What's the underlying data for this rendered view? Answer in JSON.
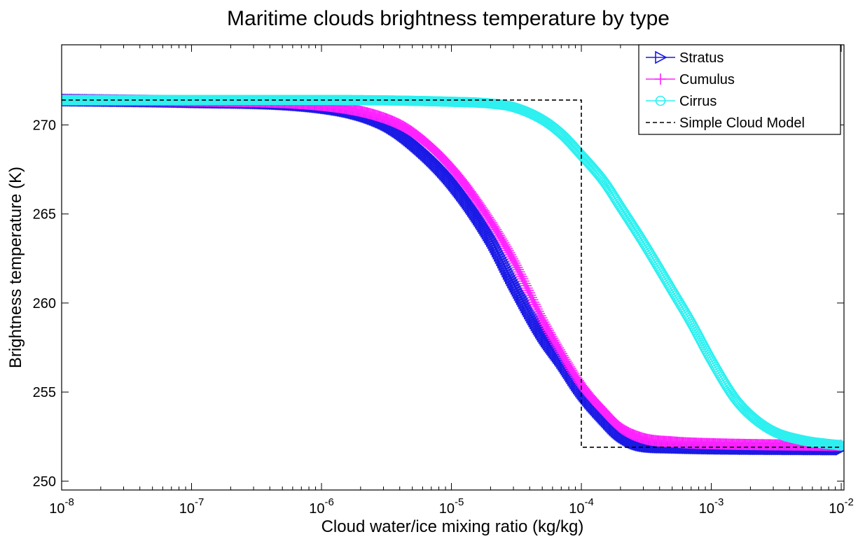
{
  "chart_data": {
    "type": "line",
    "title": "Maritime clouds brightness temperature by type",
    "xlabel": "Cloud water/ice mixing ratio (kg/kg)",
    "ylabel": "Brightness temperature (K)",
    "x_scale": "log",
    "xlim": [
      1e-08,
      0.0105
    ],
    "ylim": [
      249.5,
      274.5
    ],
    "grid": false,
    "legend_position": "top-right",
    "x_ticks": [
      {
        "value": 1e-08,
        "base": "10",
        "exp": "-8"
      },
      {
        "value": 1e-07,
        "base": "10",
        "exp": "-7"
      },
      {
        "value": 1e-06,
        "base": "10",
        "exp": "-6"
      },
      {
        "value": 1e-05,
        "base": "10",
        "exp": "-5"
      },
      {
        "value": 0.0001,
        "base": "10",
        "exp": "-4"
      },
      {
        "value": 0.001,
        "base": "10",
        "exp": "-3"
      },
      {
        "value": 0.01,
        "base": "10",
        "exp": "-2"
      }
    ],
    "y_ticks": [
      {
        "value": 250,
        "label": "250"
      },
      {
        "value": 255,
        "label": "255"
      },
      {
        "value": 260,
        "label": "260"
      },
      {
        "value": 265,
        "label": "265"
      },
      {
        "value": 270,
        "label": "270"
      }
    ],
    "series": [
      {
        "name": "Stratus",
        "color": "#1a1ae6",
        "marker": "triangle-right",
        "x": [
          1e-08,
          1e-07,
          1e-06,
          3e-06,
          5e-06,
          1e-05,
          2e-05,
          3e-05,
          5e-05,
          7e-05,
          0.0001,
          0.00015,
          0.0002,
          0.0003,
          0.0005,
          0.001,
          0.01
        ],
        "y": [
          271.4,
          271.3,
          271.0,
          270.1,
          269.0,
          266.8,
          263.6,
          261.1,
          258.2,
          256.7,
          255.0,
          253.5,
          252.6,
          252.0,
          251.9,
          251.85,
          251.8
        ]
      },
      {
        "name": "Cumulus",
        "color": "#ff22ff",
        "marker": "plus",
        "x": [
          1e-08,
          1e-07,
          1e-06,
          3e-06,
          5e-06,
          1e-05,
          2e-05,
          3e-05,
          5e-05,
          7e-05,
          0.0001,
          0.00015,
          0.0002,
          0.0003,
          0.0005,
          0.001,
          0.01
        ],
        "y": [
          271.4,
          271.35,
          271.1,
          270.4,
          269.6,
          267.6,
          264.6,
          262.4,
          259.1,
          257.2,
          255.4,
          253.9,
          253.0,
          252.4,
          252.2,
          252.1,
          252.0
        ]
      },
      {
        "name": "Cirrus",
        "color": "#2ef0f0",
        "marker": "circle",
        "x": [
          1e-08,
          1e-06,
          1e-05,
          2e-05,
          3e-05,
          5e-05,
          7e-05,
          0.0001,
          0.00015,
          0.0002,
          0.0003,
          0.0005,
          0.0007,
          0.001,
          0.0015,
          0.002,
          0.003,
          0.005,
          0.01
        ],
        "y": [
          271.4,
          271.4,
          271.3,
          271.2,
          271.0,
          270.3,
          269.5,
          268.3,
          266.8,
          265.4,
          263.4,
          260.7,
          258.9,
          256.8,
          254.7,
          253.7,
          252.8,
          252.3,
          252.0
        ]
      },
      {
        "name": "Simple Cloud Model",
        "color": "#000000",
        "marker": "none",
        "dashed": true,
        "x": [
          1e-08,
          0.0001,
          0.0001,
          0.01
        ],
        "y": [
          271.4,
          271.4,
          251.9,
          251.9
        ]
      }
    ]
  }
}
